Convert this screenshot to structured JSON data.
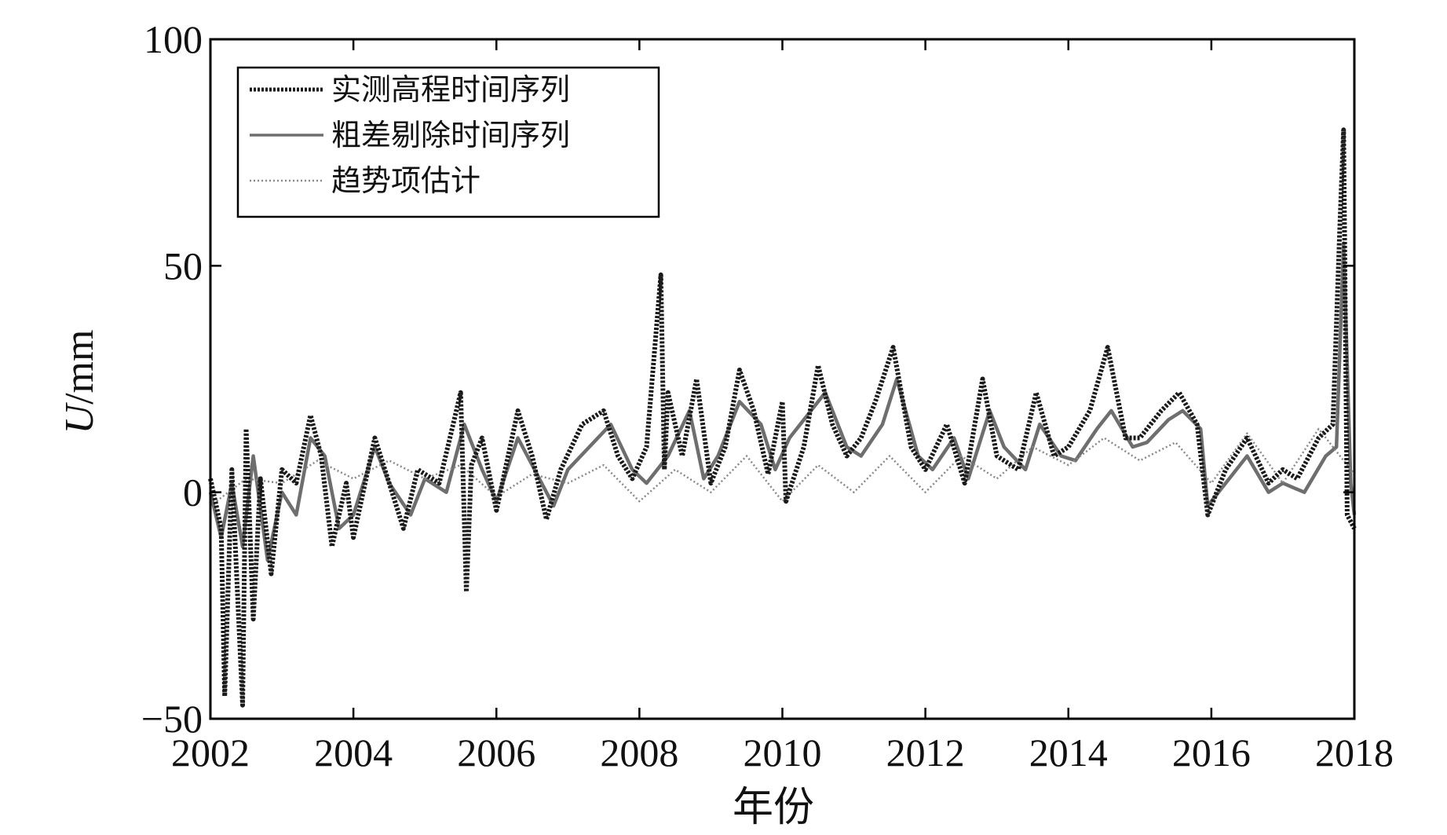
{
  "chart_data": {
    "type": "line",
    "xlabel": "年份",
    "ylabel_italic": "U",
    "ylabel_unit": "/mm",
    "xlim": [
      2002,
      2018
    ],
    "ylim": [
      -50,
      100
    ],
    "xticks": [
      2002,
      2004,
      2006,
      2008,
      2010,
      2012,
      2014,
      2016,
      2018
    ],
    "xtick_labels": [
      "2002",
      "2004",
      "2006",
      "2008",
      "2010",
      "2012",
      "2014",
      "2016",
      "2018"
    ],
    "yticks": [
      -50,
      0,
      50,
      100
    ],
    "ytick_labels": [
      "−50",
      "0",
      "50",
      "100"
    ],
    "legend_position": "top-left",
    "grid": false,
    "series": [
      {
        "name": "实测高程时间序列",
        "style": "dotted-dark",
        "color": "#1a1a1a",
        "x": [
          2002.0,
          2002.15,
          2002.2,
          2002.3,
          2002.45,
          2002.5,
          2002.6,
          2002.7,
          2002.85,
          2003.0,
          2003.2,
          2003.4,
          2003.55,
          2003.7,
          2003.9,
          2004.0,
          2004.3,
          2004.5,
          2004.7,
          2004.9,
          2005.2,
          2005.5,
          2005.58,
          2005.65,
          2005.8,
          2006.0,
          2006.3,
          2006.5,
          2006.7,
          2006.9,
          2007.2,
          2007.5,
          2007.7,
          2007.9,
          2008.1,
          2008.3,
          2008.35,
          2008.4,
          2008.6,
          2008.8,
          2009.0,
          2009.2,
          2009.4,
          2009.6,
          2009.8,
          2010.0,
          2010.05,
          2010.3,
          2010.5,
          2010.7,
          2010.9,
          2011.1,
          2011.3,
          2011.55,
          2011.8,
          2012.0,
          2012.3,
          2012.55,
          2012.8,
          2013.0,
          2013.3,
          2013.55,
          2013.8,
          2014.0,
          2014.3,
          2014.55,
          2014.8,
          2015.0,
          2015.3,
          2015.55,
          2015.8,
          2015.95,
          2016.2,
          2016.5,
          2016.8,
          2017.0,
          2017.2,
          2017.5,
          2017.7,
          2017.8,
          2017.85,
          2017.9,
          2018.0
        ],
        "y": [
          3,
          -8,
          -45,
          5,
          -47,
          14,
          -28,
          3,
          -18,
          5,
          2,
          17,
          8,
          -12,
          2,
          -10,
          12,
          2,
          -8,
          5,
          2,
          22,
          -22,
          6,
          12,
          -4,
          18,
          8,
          -6,
          5,
          15,
          18,
          8,
          3,
          10,
          48,
          5,
          22,
          8,
          25,
          2,
          10,
          27,
          18,
          4,
          20,
          -2,
          10,
          28,
          15,
          8,
          12,
          20,
          32,
          10,
          5,
          15,
          2,
          25,
          8,
          5,
          22,
          8,
          10,
          18,
          32,
          12,
          12,
          18,
          22,
          15,
          -5,
          5,
          12,
          2,
          5,
          3,
          12,
          15,
          60,
          80,
          -5,
          -8
        ]
      },
      {
        "name": "粗差剔除时间序列",
        "style": "solid-gray",
        "color": "#6e6e6e",
        "x": [
          2002.0,
          2002.15,
          2002.3,
          2002.45,
          2002.6,
          2002.8,
          2003.0,
          2003.2,
          2003.4,
          2003.6,
          2003.8,
          2004.0,
          2004.3,
          2004.5,
          2004.8,
          2005.0,
          2005.3,
          2005.55,
          2005.8,
          2006.0,
          2006.3,
          2006.5,
          2006.8,
          2007.0,
          2007.3,
          2007.6,
          2007.9,
          2008.1,
          2008.4,
          2008.7,
          2008.9,
          2009.1,
          2009.4,
          2009.7,
          2009.9,
          2010.1,
          2010.4,
          2010.6,
          2010.9,
          2011.1,
          2011.4,
          2011.6,
          2011.9,
          2012.1,
          2012.4,
          2012.6,
          2012.9,
          2013.1,
          2013.4,
          2013.6,
          2013.9,
          2014.1,
          2014.4,
          2014.6,
          2014.9,
          2015.1,
          2015.4,
          2015.6,
          2015.85,
          2015.95,
          2016.2,
          2016.5,
          2016.8,
          2017.0,
          2017.3,
          2017.6,
          2017.75,
          2017.85,
          2017.95,
          2018.0
        ],
        "y": [
          0,
          -10,
          2,
          -12,
          8,
          -15,
          0,
          -5,
          12,
          8,
          -8,
          -5,
          10,
          2,
          -5,
          3,
          0,
          15,
          5,
          -2,
          12,
          6,
          -3,
          5,
          10,
          15,
          5,
          2,
          8,
          18,
          3,
          8,
          20,
          15,
          5,
          12,
          18,
          22,
          10,
          8,
          15,
          25,
          8,
          5,
          12,
          3,
          18,
          10,
          5,
          15,
          8,
          7,
          14,
          18,
          10,
          11,
          16,
          18,
          14,
          -3,
          2,
          8,
          0,
          2,
          0,
          8,
          10,
          55,
          2,
          -5
        ]
      },
      {
        "name": "趋势项估计",
        "style": "dotted-light",
        "color": "#8a8a8a",
        "x": [
          2002.0,
          2002.5,
          2003.0,
          2003.5,
          2004.0,
          2004.5,
          2005.0,
          2005.5,
          2006.0,
          2006.5,
          2007.0,
          2007.5,
          2008.0,
          2008.5,
          2009.0,
          2009.5,
          2010.0,
          2010.5,
          2011.0,
          2011.5,
          2012.0,
          2012.5,
          2013.0,
          2013.5,
          2014.0,
          2014.5,
          2015.0,
          2015.5,
          2016.0,
          2016.5,
          2017.0,
          2017.5,
          2018.0
        ],
        "y": [
          -3,
          3,
          2,
          7,
          3,
          7,
          3,
          6,
          -1,
          4,
          2,
          6,
          -2,
          5,
          0,
          8,
          -2,
          6,
          0,
          8,
          0,
          8,
          3,
          10,
          6,
          12,
          7,
          11,
          2,
          13,
          2,
          14,
          4
        ]
      }
    ]
  }
}
